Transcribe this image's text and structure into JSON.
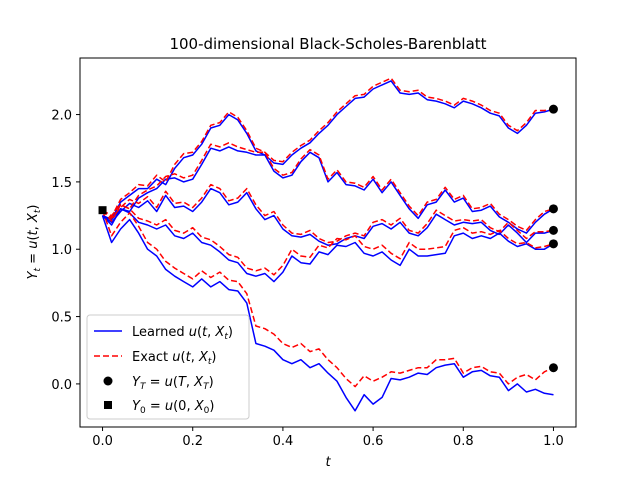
{
  "chart_data": {
    "type": "line",
    "title": "100-dimensional Black-Scholes-Barenblatt",
    "xlabel": "t",
    "ylabel": "Y_t = u(t, X_t)",
    "xlim": [
      -0.05,
      1.05
    ],
    "ylim": [
      -0.32,
      2.42
    ],
    "xticks": [
      0.0,
      0.2,
      0.4,
      0.6,
      0.8,
      1.0
    ],
    "xtick_labels": [
      "0.0",
      "0.2",
      "0.4",
      "0.6",
      "0.8",
      "1.0"
    ],
    "yticks": [
      0.0,
      0.5,
      1.0,
      1.5,
      2.0
    ],
    "ytick_labels": [
      "0.0",
      "0.5",
      "1.0",
      "1.5",
      "2.0"
    ],
    "grid": false,
    "legend_position": "lower-left",
    "legend": [
      {
        "label": "Learned u(t, X_t)",
        "style": "solid-line",
        "color": "#0000ff"
      },
      {
        "label": "Exact u(t, X_t)",
        "style": "dashed-line",
        "color": "#ff0000"
      },
      {
        "label": "Y_T = u(T, X_T)",
        "style": "circle-marker",
        "color": "#000000"
      },
      {
        "label": "Y_0 = u(0, X_0)",
        "style": "square-marker",
        "color": "#000000"
      }
    ],
    "series": [
      {
        "x": [
          0,
          0.02,
          0.04,
          0.06,
          0.08,
          0.1,
          0.12,
          0.14,
          0.16,
          0.18,
          0.2,
          0.22,
          0.24,
          0.26,
          0.28,
          0.3,
          0.32,
          0.34,
          0.36,
          0.38,
          0.4,
          0.42,
          0.44,
          0.46,
          0.48,
          0.5,
          0.52,
          0.54,
          0.56,
          0.58,
          0.6,
          0.62,
          0.64,
          0.66,
          0.68,
          0.7,
          0.72,
          0.74,
          0.76,
          0.78,
          0.8,
          0.82,
          0.84,
          0.86,
          0.88,
          0.9,
          0.92,
          0.94,
          0.96,
          0.98,
          1.0
        ],
        "learned": [
          1.25,
          1.22,
          1.35,
          1.4,
          1.45,
          1.45,
          1.52,
          1.48,
          1.6,
          1.68,
          1.7,
          1.78,
          1.9,
          1.92,
          2.0,
          1.96,
          1.86,
          1.73,
          1.7,
          1.64,
          1.63,
          1.7,
          1.75,
          1.79,
          1.86,
          1.92,
          2.0,
          2.06,
          2.12,
          2.13,
          2.19,
          2.22,
          2.25,
          2.16,
          2.15,
          2.16,
          2.11,
          2.1,
          2.08,
          2.05,
          2.1,
          2.08,
          2.05,
          2.01,
          1.99,
          1.9,
          1.86,
          1.92,
          2.01,
          2.02,
          2.04
        ],
        "exact": [
          1.29,
          1.24,
          1.37,
          1.42,
          1.48,
          1.47,
          1.55,
          1.5,
          1.63,
          1.71,
          1.72,
          1.8,
          1.92,
          1.94,
          2.02,
          1.98,
          1.88,
          1.75,
          1.72,
          1.66,
          1.65,
          1.72,
          1.77,
          1.81,
          1.88,
          1.94,
          2.02,
          2.08,
          2.14,
          2.15,
          2.21,
          2.24,
          2.27,
          2.18,
          2.17,
          2.18,
          2.13,
          2.12,
          2.1,
          2.07,
          2.12,
          2.1,
          2.07,
          2.03,
          2.01,
          1.92,
          1.88,
          1.94,
          2.03,
          2.03,
          2.04
        ]
      },
      {
        "x": [
          0,
          0.02,
          0.04,
          0.06,
          0.08,
          0.1,
          0.12,
          0.14,
          0.16,
          0.18,
          0.2,
          0.22,
          0.24,
          0.26,
          0.28,
          0.3,
          0.32,
          0.34,
          0.36,
          0.38,
          0.4,
          0.42,
          0.44,
          0.46,
          0.48,
          0.5,
          0.52,
          0.54,
          0.56,
          0.58,
          0.6,
          0.62,
          0.64,
          0.66,
          0.68,
          0.7,
          0.72,
          0.74,
          0.76,
          0.78,
          0.8,
          0.82,
          0.84,
          0.86,
          0.88,
          0.9,
          0.92,
          0.94,
          0.96,
          0.98,
          1.0
        ],
        "learned": [
          1.25,
          1.22,
          1.3,
          1.28,
          1.38,
          1.42,
          1.45,
          1.52,
          1.53,
          1.5,
          1.52,
          1.63,
          1.75,
          1.73,
          1.76,
          1.73,
          1.72,
          1.7,
          1.7,
          1.58,
          1.53,
          1.55,
          1.65,
          1.72,
          1.68,
          1.5,
          1.57,
          1.48,
          1.47,
          1.44,
          1.52,
          1.42,
          1.5,
          1.4,
          1.3,
          1.23,
          1.33,
          1.35,
          1.44,
          1.35,
          1.38,
          1.28,
          1.29,
          1.32,
          1.24,
          1.2,
          1.15,
          1.12,
          1.2,
          1.26,
          1.3
        ],
        "exact": [
          1.29,
          1.25,
          1.33,
          1.3,
          1.4,
          1.44,
          1.47,
          1.54,
          1.56,
          1.53,
          1.55,
          1.66,
          1.78,
          1.76,
          1.79,
          1.76,
          1.74,
          1.72,
          1.72,
          1.6,
          1.55,
          1.57,
          1.67,
          1.74,
          1.7,
          1.52,
          1.59,
          1.5,
          1.49,
          1.46,
          1.54,
          1.44,
          1.52,
          1.42,
          1.32,
          1.25,
          1.35,
          1.37,
          1.46,
          1.37,
          1.4,
          1.3,
          1.31,
          1.34,
          1.26,
          1.22,
          1.17,
          1.14,
          1.22,
          1.28,
          1.3
        ]
      },
      {
        "x": [
          0,
          0.02,
          0.04,
          0.06,
          0.08,
          0.1,
          0.12,
          0.14,
          0.16,
          0.18,
          0.2,
          0.22,
          0.24,
          0.26,
          0.28,
          0.3,
          0.32,
          0.34,
          0.36,
          0.38,
          0.4,
          0.42,
          0.44,
          0.46,
          0.48,
          0.5,
          0.52,
          0.54,
          0.56,
          0.58,
          0.6,
          0.62,
          0.64,
          0.66,
          0.68,
          0.7,
          0.72,
          0.74,
          0.76,
          0.78,
          0.8,
          0.82,
          0.84,
          0.86,
          0.88,
          0.9,
          0.92,
          0.94,
          0.96,
          0.98,
          1.0
        ],
        "learned": [
          1.25,
          1.2,
          1.28,
          1.34,
          1.31,
          1.36,
          1.28,
          1.4,
          1.31,
          1.32,
          1.28,
          1.35,
          1.45,
          1.42,
          1.33,
          1.35,
          1.42,
          1.3,
          1.22,
          1.25,
          1.15,
          1.1,
          1.09,
          1.11,
          1.06,
          1.03,
          1.04,
          1.08,
          1.1,
          1.08,
          1.17,
          1.19,
          1.15,
          1.2,
          1.12,
          1.1,
          1.16,
          1.26,
          1.22,
          1.18,
          1.2,
          1.19,
          1.2,
          1.14,
          1.11,
          1.18,
          1.12,
          1.05,
          1.12,
          1.12,
          1.14
        ],
        "exact": [
          1.29,
          1.23,
          1.31,
          1.37,
          1.34,
          1.39,
          1.31,
          1.43,
          1.34,
          1.35,
          1.31,
          1.38,
          1.48,
          1.45,
          1.36,
          1.38,
          1.45,
          1.33,
          1.25,
          1.28,
          1.18,
          1.12,
          1.11,
          1.14,
          1.08,
          1.05,
          1.06,
          1.1,
          1.12,
          1.1,
          1.2,
          1.22,
          1.18,
          1.23,
          1.14,
          1.12,
          1.19,
          1.29,
          1.25,
          1.21,
          1.22,
          1.21,
          1.22,
          1.16,
          1.13,
          1.2,
          1.14,
          1.08,
          1.13,
          1.13,
          1.14
        ]
      },
      {
        "x": [
          0,
          0.02,
          0.04,
          0.06,
          0.08,
          0.1,
          0.12,
          0.14,
          0.16,
          0.18,
          0.2,
          0.22,
          0.24,
          0.26,
          0.28,
          0.3,
          0.32,
          0.34,
          0.36,
          0.38,
          0.4,
          0.42,
          0.44,
          0.46,
          0.48,
          0.5,
          0.52,
          0.54,
          0.56,
          0.58,
          0.6,
          0.62,
          0.64,
          0.66,
          0.68,
          0.7,
          0.72,
          0.74,
          0.76,
          0.78,
          0.8,
          0.82,
          0.84,
          0.86,
          0.88,
          0.9,
          0.92,
          0.94,
          0.96,
          0.98,
          1.0
        ],
        "learned": [
          1.25,
          1.18,
          1.3,
          1.27,
          1.2,
          1.18,
          1.15,
          1.18,
          1.1,
          1.08,
          1.12,
          1.05,
          1.03,
          0.98,
          0.92,
          0.9,
          0.82,
          0.8,
          0.82,
          0.76,
          0.83,
          0.95,
          0.9,
          0.89,
          0.98,
          0.96,
          1.03,
          1.02,
          1.05,
          0.97,
          0.95,
          0.98,
          0.92,
          0.88,
          1.0,
          0.95,
          0.95,
          0.96,
          0.97,
          1.1,
          1.12,
          1.08,
          1.1,
          1.08,
          1.12,
          1.06,
          1.02,
          1.04,
          1.0,
          1.0,
          1.04
        ],
        "exact": [
          1.29,
          1.21,
          1.33,
          1.3,
          1.23,
          1.21,
          1.18,
          1.22,
          1.14,
          1.12,
          1.16,
          1.09,
          1.07,
          1.02,
          0.96,
          0.94,
          0.86,
          0.84,
          0.86,
          0.81,
          0.88,
          1.0,
          0.95,
          0.94,
          1.03,
          1.01,
          1.08,
          1.07,
          1.1,
          1.02,
          1.0,
          1.03,
          0.97,
          0.93,
          1.05,
          1.0,
          1.0,
          1.01,
          1.02,
          1.14,
          1.16,
          1.12,
          1.13,
          1.11,
          1.14,
          1.08,
          1.04,
          1.05,
          1.01,
          1.02,
          1.04
        ]
      },
      {
        "x": [
          0,
          0.02,
          0.04,
          0.06,
          0.08,
          0.1,
          0.12,
          0.14,
          0.16,
          0.18,
          0.2,
          0.22,
          0.24,
          0.26,
          0.28,
          0.3,
          0.32,
          0.34,
          0.36,
          0.38,
          0.4,
          0.42,
          0.44,
          0.46,
          0.48,
          0.5,
          0.52,
          0.54,
          0.56,
          0.58,
          0.6,
          0.62,
          0.64,
          0.66,
          0.68,
          0.7,
          0.72,
          0.74,
          0.76,
          0.78,
          0.8,
          0.82,
          0.84,
          0.86,
          0.88,
          0.9,
          0.92,
          0.94,
          0.96,
          0.98,
          1.0
        ],
        "learned": [
          1.25,
          1.05,
          1.15,
          1.22,
          1.12,
          1.0,
          0.95,
          0.85,
          0.8,
          0.76,
          0.72,
          0.78,
          0.72,
          0.76,
          0.7,
          0.69,
          0.6,
          0.3,
          0.28,
          0.25,
          0.18,
          0.15,
          0.18,
          0.12,
          0.15,
          0.08,
          0.02,
          -0.1,
          -0.2,
          -0.08,
          -0.15,
          -0.1,
          0.04,
          0.03,
          0.05,
          0.08,
          0.07,
          0.12,
          0.14,
          0.15,
          0.05,
          0.09,
          0.1,
          0.06,
          0.05,
          -0.05,
          0.0,
          -0.06,
          -0.04,
          -0.07,
          -0.08
        ],
        "exact": [
          1.29,
          1.1,
          1.2,
          1.27,
          1.17,
          1.05,
          1.0,
          0.91,
          0.86,
          0.82,
          0.78,
          0.84,
          0.79,
          0.83,
          0.77,
          0.76,
          0.67,
          0.43,
          0.41,
          0.37,
          0.3,
          0.27,
          0.3,
          0.24,
          0.26,
          0.18,
          0.12,
          0.04,
          -0.02,
          0.06,
          0.02,
          0.05,
          0.09,
          0.08,
          0.1,
          0.12,
          0.12,
          0.18,
          0.18,
          0.19,
          0.08,
          0.12,
          0.13,
          0.09,
          0.08,
          0.0,
          0.05,
          0.07,
          0.03,
          0.09,
          0.12
        ]
      }
    ],
    "endpoints_T": [
      2.04,
      1.3,
      1.14,
      1.04,
      0.12
    ],
    "start_point": {
      "x": 0.0,
      "y": 1.29
    },
    "colors": {
      "learned": "#0000ff",
      "exact": "#ff0000",
      "marker": "#000000"
    }
  }
}
